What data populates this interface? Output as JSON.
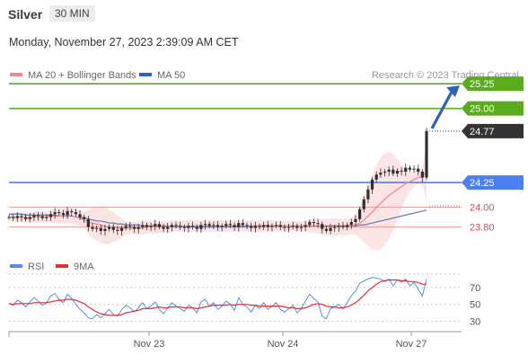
{
  "header": {
    "symbol": "Silver",
    "timeframe": "30 MIN",
    "timestamp": "Monday, November 27, 2023 2:39:09 AM CET"
  },
  "colors": {
    "resistance": "#5aab1e",
    "support_blue": "#4d7ff0",
    "support_red": "#f08a8a",
    "last_price": "#333333",
    "arrow": "#2e62b8",
    "ma20": "#f08a8a",
    "ma50": "#6f7fb8",
    "bollinger_fill": "#fbe1e1",
    "rsi": "#5a8ee8",
    "rsi_ma": "#e03030",
    "candle": "#2f2f2f",
    "grid": "#c8c8c8"
  },
  "chart_data": [
    {
      "type": "candlestick",
      "title": "",
      "legend": [
        {
          "name": "MA 20 + Bollinger Bands",
          "color": "#f08a8a"
        },
        {
          "name": "MA 50",
          "color": "#2e62b8"
        }
      ],
      "credit": "Research © 2023 Trading Central",
      "x_ticks": [
        "Nov 23",
        "Nov 24",
        "Nov 27"
      ],
      "ylim": [
        23.55,
        25.37
      ],
      "close": [
        23.9,
        23.89,
        23.91,
        23.9,
        23.88,
        23.9,
        23.92,
        23.91,
        23.89,
        23.9,
        23.93,
        23.95,
        23.94,
        23.92,
        23.96,
        23.95,
        23.93,
        23.9,
        23.88,
        23.8,
        23.78,
        23.79,
        23.76,
        23.78,
        23.8,
        23.77,
        23.76,
        23.79,
        23.81,
        23.8,
        23.78,
        23.8,
        23.82,
        23.8,
        23.81,
        23.83,
        23.8,
        23.78,
        23.8,
        23.82,
        23.81,
        23.8,
        23.79,
        23.81,
        23.8,
        23.78,
        23.82,
        23.83,
        23.81,
        23.82,
        23.8,
        23.81,
        23.83,
        23.82,
        23.8,
        23.84,
        23.82,
        23.81,
        23.79,
        23.81,
        23.8,
        23.82,
        23.8,
        23.81,
        23.82,
        23.8,
        23.79,
        23.8,
        23.81,
        23.79,
        23.8,
        23.82,
        23.85,
        23.84,
        23.83,
        23.78,
        23.76,
        23.79,
        23.8,
        23.81,
        23.8,
        23.82,
        23.85,
        23.88,
        23.98,
        24.08,
        24.18,
        24.28,
        24.33,
        24.35,
        24.36,
        24.38,
        24.34,
        24.37,
        24.36,
        24.4,
        24.38,
        24.39,
        24.36,
        24.3,
        24.77
      ],
      "ma20": [
        23.9,
        23.9,
        23.9,
        23.9,
        23.89,
        23.89,
        23.9,
        23.9,
        23.9,
        23.9,
        23.91,
        23.91,
        23.91,
        23.91,
        23.92,
        23.91,
        23.9,
        23.89,
        23.87,
        23.85,
        23.84,
        23.83,
        23.82,
        23.81,
        23.8,
        23.8,
        23.79,
        23.79,
        23.79,
        23.79,
        23.79,
        23.79,
        23.79,
        23.8,
        23.8,
        23.8,
        23.8,
        23.8,
        23.8,
        23.81,
        23.81,
        23.81,
        23.81,
        23.81,
        23.81,
        23.81,
        23.81,
        23.81,
        23.81,
        23.81,
        23.81,
        23.81,
        23.81,
        23.81,
        23.81,
        23.81,
        23.81,
        23.81,
        23.81,
        23.81,
        23.81,
        23.81,
        23.81,
        23.81,
        23.81,
        23.81,
        23.81,
        23.81,
        23.81,
        23.81,
        23.81,
        23.81,
        23.81,
        23.81,
        23.81,
        23.8,
        23.8,
        23.8,
        23.8,
        23.8,
        23.8,
        23.8,
        23.81,
        23.82,
        23.84,
        23.87,
        23.91,
        23.95,
        24.0,
        24.04,
        24.08,
        24.12,
        24.15,
        24.18,
        24.21,
        24.24,
        24.26,
        24.28,
        24.3,
        24.31,
        24.36
      ],
      "ma50": [
        23.93,
        23.93,
        23.93,
        23.93,
        23.92,
        23.92,
        23.92,
        23.92,
        23.92,
        23.92,
        23.92,
        23.92,
        23.91,
        23.91,
        23.91,
        23.91,
        23.9,
        23.9,
        23.89,
        23.88,
        23.87,
        23.86,
        23.86,
        23.85,
        23.84,
        23.84,
        23.83,
        23.83,
        23.82,
        23.82,
        23.82,
        23.82,
        23.81,
        23.81,
        23.81,
        23.81,
        23.81,
        23.81,
        23.81,
        23.8,
        23.8,
        23.8,
        23.8,
        23.8,
        23.8,
        23.8,
        23.8,
        23.8,
        23.8,
        23.8,
        23.8,
        23.8,
        23.8,
        23.8,
        23.8,
        23.8,
        23.8,
        23.8,
        23.81,
        23.81,
        23.81,
        23.81,
        23.81,
        23.81,
        23.81,
        23.81,
        23.81,
        23.81,
        23.81,
        23.81,
        23.81,
        23.81,
        23.81,
        23.81,
        23.81,
        23.81,
        23.81,
        23.81,
        23.81,
        23.81,
        23.81,
        23.81,
        23.81,
        23.81,
        23.82,
        23.82,
        23.83,
        23.84,
        23.85,
        23.86,
        23.87,
        23.88,
        23.89,
        23.9,
        23.91,
        23.92,
        23.93,
        23.94,
        23.95,
        23.96,
        23.97
      ],
      "levels": [
        {
          "value": 25.25,
          "label": "25.25",
          "kind": "resistance"
        },
        {
          "value": 25.0,
          "label": "25.00",
          "kind": "resistance"
        },
        {
          "value": 24.77,
          "label": "24.77",
          "kind": "last"
        },
        {
          "value": 24.25,
          "label": "24.25",
          "kind": "pivot"
        },
        {
          "value": 24.0,
          "label": "24.00",
          "kind": "support"
        },
        {
          "value": 23.8,
          "label": "23.80",
          "kind": "support"
        }
      ]
    },
    {
      "type": "line",
      "title": "",
      "legend": [
        {
          "name": "RSI",
          "color": "#5a8ee8"
        },
        {
          "name": "9MA",
          "color": "#e03030"
        }
      ],
      "ylim": [
        22,
        88
      ],
      "y_ticks": [
        70,
        50,
        30
      ],
      "series": [
        {
          "name": "RSI",
          "values": [
            51,
            49,
            55,
            52,
            47,
            53,
            58,
            54,
            49,
            52,
            60,
            63,
            56,
            52,
            62,
            57,
            50,
            44,
            40,
            34,
            33,
            38,
            34,
            39,
            44,
            38,
            36,
            44,
            49,
            46,
            41,
            46,
            52,
            45,
            48,
            53,
            44,
            39,
            46,
            52,
            48,
            45,
            42,
            49,
            46,
            40,
            53,
            56,
            48,
            52,
            44,
            48,
            54,
            50,
            43,
            58,
            50,
            47,
            41,
            49,
            45,
            52,
            44,
            48,
            52,
            44,
            41,
            45,
            49,
            40,
            45,
            54,
            62,
            57,
            53,
            36,
            33,
            45,
            47,
            50,
            45,
            52,
            60,
            66,
            75,
            78,
            80,
            82,
            81,
            80,
            77,
            80,
            72,
            79,
            76,
            80,
            72,
            76,
            68,
            60,
            80
          ]
        },
        {
          "name": "9MA",
          "values": [
            51,
            50,
            51,
            51,
            51,
            51,
            52,
            52,
            52,
            52,
            53,
            54,
            55,
            55,
            56,
            56,
            55,
            53,
            51,
            47,
            44,
            41,
            39,
            38,
            37,
            37,
            37,
            38,
            40,
            41,
            42,
            43,
            45,
            45,
            45,
            46,
            47,
            46,
            46,
            47,
            47,
            47,
            46,
            46,
            46,
            45,
            46,
            47,
            48,
            49,
            49,
            49,
            49,
            50,
            49,
            50,
            50,
            50,
            49,
            49,
            48,
            48,
            48,
            48,
            48,
            48,
            47,
            46,
            46,
            45,
            45,
            46,
            48,
            50,
            51,
            50,
            48,
            47,
            47,
            46,
            46,
            47,
            49,
            52,
            56,
            61,
            66,
            70,
            74,
            77,
            78,
            79,
            79,
            79,
            78,
            78,
            77,
            77,
            76,
            74,
            74
          ]
        }
      ]
    }
  ]
}
